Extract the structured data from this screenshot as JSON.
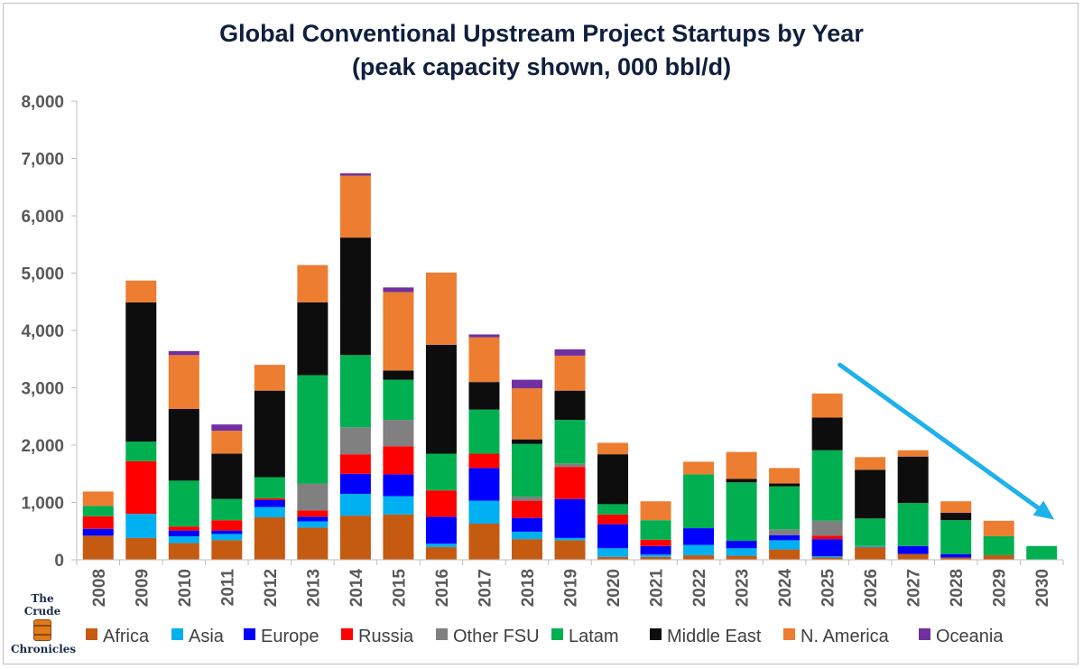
{
  "chart_data": {
    "type": "bar",
    "stacked": true,
    "title": "Global Conventional Upstream Project Startups by Year",
    "subtitle": "(peak capacity shown, 000 bbl/d)",
    "ylim": [
      0,
      8000
    ],
    "yticks": [
      "0",
      "1,000",
      "2,000",
      "3,000",
      "4,000",
      "5,000",
      "6,000",
      "7,000",
      "8,000"
    ],
    "grid": false,
    "legend_position": "bottom",
    "categories": [
      "2008",
      "2009",
      "2010",
      "2011",
      "2012",
      "2013",
      "2014",
      "2015",
      "2016",
      "2017",
      "2018",
      "2019",
      "2020",
      "2021",
      "2022",
      "2023",
      "2024",
      "2025",
      "2026",
      "2027",
      "2028",
      "2029",
      "2030"
    ],
    "series": [
      {
        "name": "Africa",
        "color": "#c55a11",
        "values": [
          420,
          380,
          290,
          340,
          740,
          560,
          770,
          790,
          220,
          630,
          360,
          340,
          50,
          50,
          80,
          70,
          180,
          40,
          220,
          100,
          40,
          80,
          0
        ]
      },
      {
        "name": "Asia",
        "color": "#00b0f0",
        "values": [
          0,
          420,
          120,
          110,
          180,
          110,
          380,
          320,
          60,
          400,
          130,
          40,
          150,
          40,
          180,
          130,
          160,
          20,
          20,
          0,
          0,
          0,
          0
        ]
      },
      {
        "name": "Europe",
        "color": "#0000ff",
        "values": [
          120,
          0,
          100,
          60,
          120,
          80,
          350,
          380,
          470,
          570,
          240,
          680,
          420,
          150,
          290,
          130,
          90,
          300,
          0,
          140,
          60,
          0,
          0
        ]
      },
      {
        "name": "Russia",
        "color": "#ff0000",
        "values": [
          220,
          920,
          70,
          180,
          30,
          110,
          340,
          490,
          460,
          250,
          300,
          560,
          170,
          110,
          0,
          0,
          0,
          60,
          0,
          0,
          0,
          0,
          0
        ]
      },
      {
        "name": "Other FSU",
        "color": "#808080",
        "values": [
          0,
          0,
          0,
          0,
          0,
          470,
          470,
          460,
          0,
          0,
          70,
          60,
          0,
          0,
          0,
          0,
          100,
          260,
          0,
          0,
          0,
          0,
          0
        ]
      },
      {
        "name": "Latam",
        "color": "#00b050",
        "values": [
          180,
          340,
          800,
          370,
          370,
          1890,
          1260,
          700,
          640,
          770,
          920,
          760,
          180,
          340,
          940,
          1020,
          750,
          1230,
          480,
          750,
          590,
          330,
          240
        ]
      },
      {
        "name": "Middle East",
        "color": "#0d0d0d",
        "values": [
          0,
          2430,
          1250,
          790,
          1510,
          1270,
          2050,
          160,
          1900,
          480,
          80,
          510,
          870,
          0,
          0,
          60,
          50,
          570,
          850,
          810,
          130,
          0,
          0
        ]
      },
      {
        "name": "N. America",
        "color": "#ed7d31",
        "values": [
          250,
          380,
          940,
          400,
          450,
          650,
          1080,
          1370,
          1260,
          780,
          890,
          610,
          200,
          330,
          220,
          470,
          270,
          420,
          220,
          110,
          200,
          270,
          0
        ]
      },
      {
        "name": "Oceania",
        "color": "#7030a0",
        "values": [
          0,
          0,
          70,
          110,
          0,
          0,
          40,
          80,
          0,
          50,
          150,
          110,
          0,
          0,
          0,
          0,
          0,
          0,
          0,
          0,
          0,
          0,
          0
        ]
      }
    ],
    "annotation": {
      "type": "arrow",
      "color": "#1fb1ea",
      "from": {
        "x": "2025",
        "y": 3400
      },
      "to": {
        "x": "2030",
        "y": 700
      }
    }
  },
  "branding": {
    "line1": "The Crude",
    "line2": "Chronicles"
  }
}
